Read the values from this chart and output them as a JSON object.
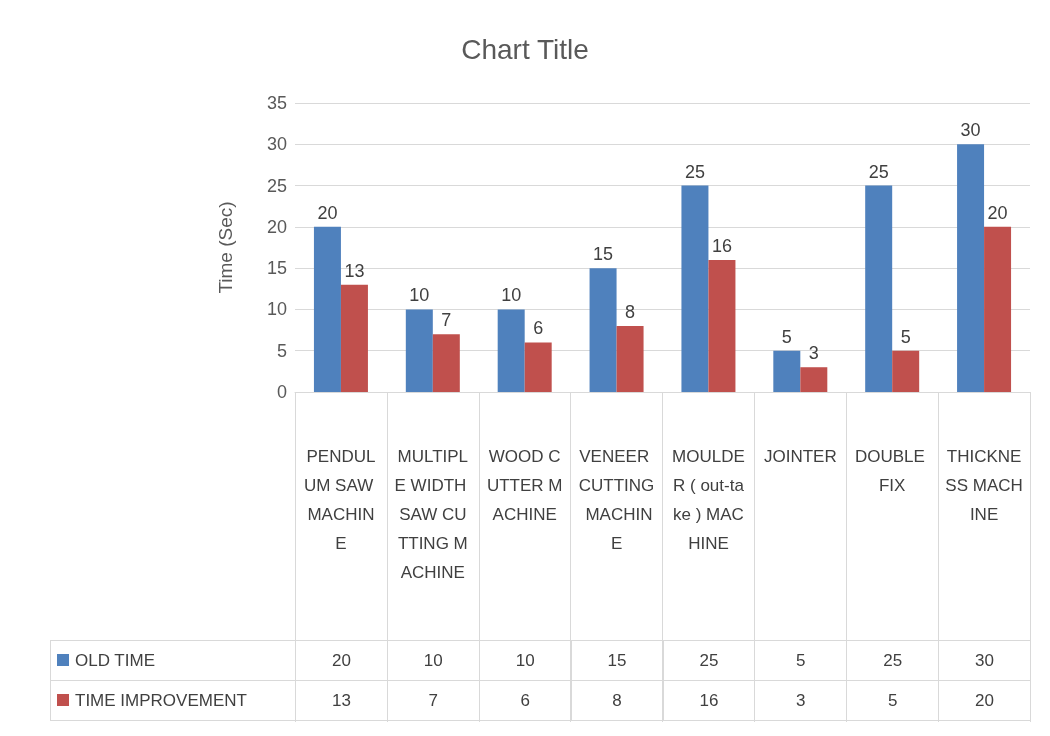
{
  "chart_data": {
    "type": "bar",
    "title": "Chart Title",
    "ylabel": "Time (Sec)",
    "categories": [
      "PENDULUM SAW MACHINE",
      "MULTIPLE WIDTH SAW CUTTING MACHINE",
      "WOOD CUTTER MACHINE",
      "VENEER CUTTING MACHINE",
      "MOULDER ( out-take ) MACHINE",
      "JOINTER",
      "DOUBLE FIX",
      "THICKNESS MACHINE"
    ],
    "series": [
      {
        "name": "OLD TIME",
        "color": "#4f81bd",
        "values": [
          20,
          10,
          10,
          15,
          25,
          5,
          25,
          30
        ],
        "value_labels": [
          "20",
          "10",
          "10",
          "15",
          "25",
          "5",
          "25",
          "30"
        ]
      },
      {
        "name": "TIME IMPROVEMENT",
        "color": "#c0504d",
        "values": [
          13,
          7,
          6,
          8,
          16,
          3,
          5,
          20
        ],
        "value_labels": [
          "13",
          "7",
          "6",
          "8",
          "16",
          "3",
          "5",
          "20"
        ]
      }
    ],
    "ylim": [
      0,
      35
    ],
    "yticks": [
      0,
      5,
      10,
      15,
      20,
      25,
      30,
      35
    ],
    "grid": "y",
    "data_labels": true,
    "legend": "bottom left"
  }
}
